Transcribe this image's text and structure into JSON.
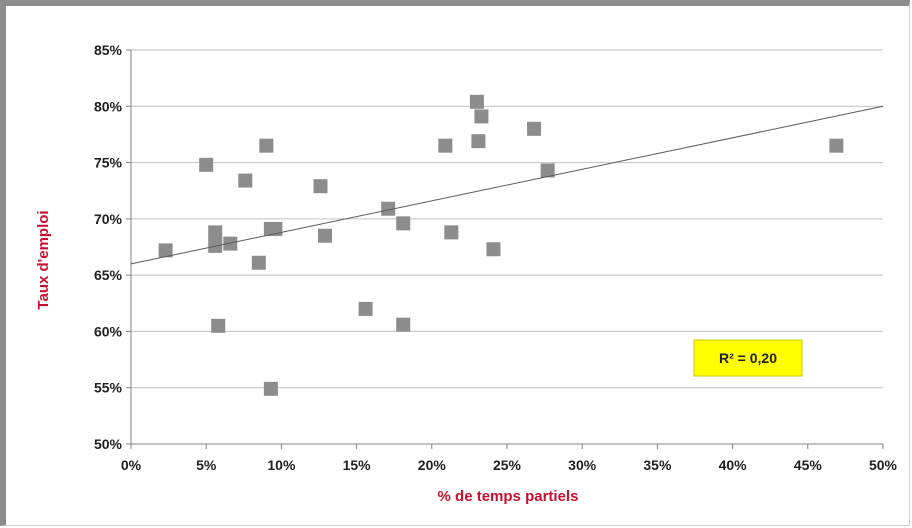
{
  "chart_data": {
    "type": "scatter",
    "xlabel": "% de temps partiels",
    "ylabel": "Taux d'emploi",
    "xlim": [
      0,
      50
    ],
    "ylim": [
      50,
      85
    ],
    "x_ticks": [
      0,
      5,
      10,
      15,
      20,
      25,
      30,
      35,
      40,
      45,
      50
    ],
    "y_ticks": [
      50,
      55,
      60,
      65,
      70,
      75,
      80,
      85
    ],
    "x_tick_labels": [
      "0%",
      "5%",
      "10%",
      "15%",
      "20%",
      "25%",
      "30%",
      "35%",
      "40%",
      "45%",
      "50%"
    ],
    "y_tick_labels": [
      "50%",
      "55%",
      "60%",
      "65%",
      "70%",
      "75%",
      "80%",
      "85%"
    ],
    "grid": "horizontal",
    "points": [
      {
        "x": 2.3,
        "y": 67.2
      },
      {
        "x": 5.0,
        "y": 74.8
      },
      {
        "x": 5.6,
        "y": 68.8
      },
      {
        "x": 5.6,
        "y": 67.6
      },
      {
        "x": 5.8,
        "y": 60.5
      },
      {
        "x": 6.6,
        "y": 67.8
      },
      {
        "x": 7.6,
        "y": 73.4
      },
      {
        "x": 8.5,
        "y": 66.1
      },
      {
        "x": 9.0,
        "y": 76.5
      },
      {
        "x": 9.3,
        "y": 54.9
      },
      {
        "x": 9.3,
        "y": 69.1
      },
      {
        "x": 9.6,
        "y": 69.1
      },
      {
        "x": 12.6,
        "y": 72.9
      },
      {
        "x": 12.9,
        "y": 68.5
      },
      {
        "x": 15.6,
        "y": 62.0
      },
      {
        "x": 17.1,
        "y": 70.9
      },
      {
        "x": 18.1,
        "y": 69.6
      },
      {
        "x": 18.1,
        "y": 60.6
      },
      {
        "x": 20.9,
        "y": 76.5
      },
      {
        "x": 21.3,
        "y": 68.8
      },
      {
        "x": 23.0,
        "y": 80.4
      },
      {
        "x": 23.1,
        "y": 76.9
      },
      {
        "x": 23.3,
        "y": 79.1
      },
      {
        "x": 24.1,
        "y": 67.3
      },
      {
        "x": 26.8,
        "y": 78.0
      },
      {
        "x": 27.7,
        "y": 74.3
      },
      {
        "x": 46.9,
        "y": 76.5
      }
    ],
    "trendline": {
      "x": [
        0,
        50
      ],
      "y": [
        66.0,
        80.0
      ]
    },
    "annotation": "R² = 0,20",
    "colors": {
      "marker": "#8c8c8c",
      "trendline": "#5a5a5a",
      "grid": "#c0c0c0",
      "axis_title": "#c8102e",
      "annotation_bg": "#ffff00"
    }
  }
}
